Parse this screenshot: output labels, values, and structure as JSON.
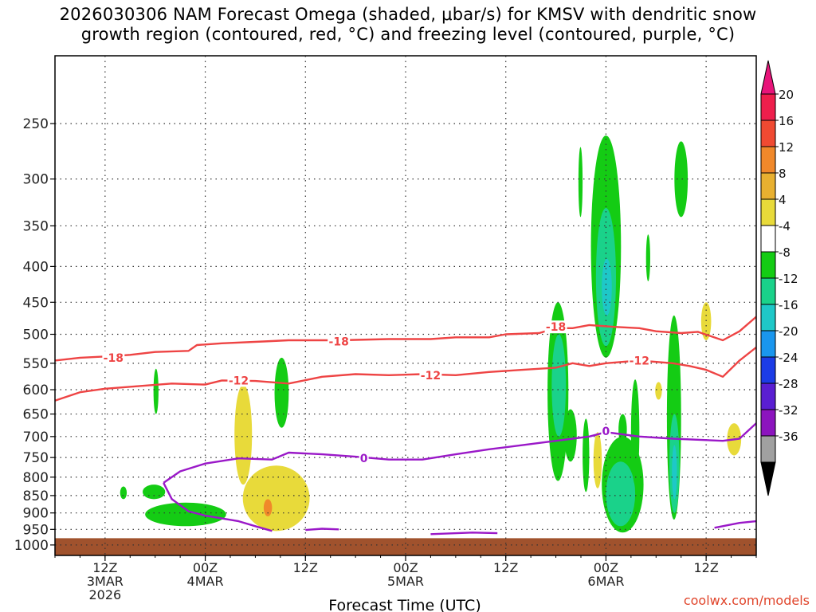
{
  "title": {
    "line1": "2026030306 NAM Forecast Omega (shaded, μbar/s) for KMSV with dendritic snow",
    "line2": "growth region (contoured, red, °C) and freezing level (contoured, purple, °C)"
  },
  "credit": "coolwx.com/models",
  "chart_data": {
    "type": "heatmap",
    "title": "2026030306 NAM Forecast Omega (shaded, μbar/s) for KMSV with dendritic snow growth region (contoured, red, °C) and freezing level (contoured, purple, °C)",
    "xlabel": "Forecast Time (UTC)",
    "ylabel": "",
    "x_range_hours": [
      0,
      84
    ],
    "y_log_scale": true,
    "ylim": [
      1035,
      200
    ],
    "grid": true,
    "y_ticks": [
      250,
      300,
      350,
      400,
      450,
      500,
      550,
      600,
      650,
      700,
      750,
      800,
      850,
      900,
      950,
      1000
    ],
    "x_ticks": [
      {
        "hour": 6,
        "lines": [
          "12Z",
          "3MAR",
          "2026"
        ]
      },
      {
        "hour": 18,
        "lines": [
          "00Z",
          "4MAR"
        ]
      },
      {
        "hour": 30,
        "lines": [
          "12Z"
        ]
      },
      {
        "hour": 42,
        "lines": [
          "00Z",
          "5MAR"
        ]
      },
      {
        "hour": 54,
        "lines": [
          "12Z"
        ]
      },
      {
        "hour": 66,
        "lines": [
          "00Z",
          "6MAR"
        ]
      },
      {
        "hour": 78,
        "lines": [
          "12Z"
        ]
      }
    ],
    "colorbar": [
      {
        "label": "20",
        "color": "#ee1e4c"
      },
      {
        "label": "16",
        "color": "#f04a32"
      },
      {
        "label": "12",
        "color": "#f0882a"
      },
      {
        "label": "8",
        "color": "#e8b030"
      },
      {
        "label": "4",
        "color": "#e8da3a"
      },
      {
        "label": "-4",
        "color": "#ffffff"
      },
      {
        "label": "-8",
        "color": "#14cc14"
      },
      {
        "label": "-12",
        "color": "#1ad28a"
      },
      {
        "label": "-16",
        "color": "#1ec8c8"
      },
      {
        "label": "-20",
        "color": "#1a96ee"
      },
      {
        "label": "-24",
        "color": "#1c3ce6"
      },
      {
        "label": "-28",
        "color": "#5a1ed2"
      },
      {
        "label": "-32",
        "color": "#8c14be"
      },
      {
        "label": "-36",
        "color": "#a0a0a0"
      }
    ],
    "colorbar_top_color": "#e8147a",
    "colorbar_bottom_color": "#000000",
    "contours": [
      {
        "level": -18,
        "color": "#ee4444",
        "points": [
          [
            0,
            545
          ],
          [
            3,
            540
          ],
          [
            6,
            538
          ],
          [
            9,
            535
          ],
          [
            12,
            530
          ],
          [
            16,
            528
          ],
          [
            17,
            518
          ],
          [
            20,
            515
          ],
          [
            25,
            512
          ],
          [
            28,
            510
          ],
          [
            34,
            510
          ],
          [
            40,
            508
          ],
          [
            45,
            508
          ],
          [
            48,
            505
          ],
          [
            52,
            505
          ],
          [
            54,
            500
          ],
          [
            58,
            498
          ],
          [
            60,
            490
          ],
          [
            62,
            490
          ],
          [
            64,
            485
          ],
          [
            67,
            488
          ],
          [
            70,
            490
          ],
          [
            72,
            495
          ],
          [
            75,
            498
          ],
          [
            77,
            496
          ],
          [
            80,
            510
          ],
          [
            82,
            495
          ],
          [
            84,
            472
          ]
        ],
        "labels": [
          [
            7,
            540
          ],
          [
            34,
            512
          ],
          [
            60,
            488
          ]
        ]
      },
      {
        "level": -12,
        "color": "#ee4444",
        "points": [
          [
            0,
            622
          ],
          [
            3,
            605
          ],
          [
            6,
            598
          ],
          [
            10,
            593
          ],
          [
            14,
            588
          ],
          [
            18,
            590
          ],
          [
            20,
            582
          ],
          [
            24,
            583
          ],
          [
            28,
            588
          ],
          [
            32,
            575
          ],
          [
            36,
            570
          ],
          [
            40,
            572
          ],
          [
            44,
            570
          ],
          [
            48,
            572
          ],
          [
            52,
            566
          ],
          [
            56,
            562
          ],
          [
            60,
            558
          ],
          [
            62,
            550
          ],
          [
            64,
            555
          ],
          [
            66,
            550
          ],
          [
            70,
            545
          ],
          [
            74,
            550
          ],
          [
            76,
            555
          ],
          [
            78,
            562
          ],
          [
            80,
            575
          ],
          [
            82,
            545
          ],
          [
            84,
            522
          ]
        ],
        "labels": [
          [
            22,
            582
          ],
          [
            45,
            572
          ],
          [
            70,
            545
          ]
        ]
      },
      {
        "level": 0,
        "color": "#9a18c8",
        "points": [
          [
            13,
            815
          ],
          [
            15,
            785
          ],
          [
            18,
            765
          ],
          [
            22,
            752
          ],
          [
            26,
            755
          ],
          [
            28,
            738
          ],
          [
            32,
            742
          ],
          [
            36,
            748
          ],
          [
            40,
            755
          ],
          [
            44,
            755
          ],
          [
            48,
            742
          ],
          [
            52,
            730
          ],
          [
            56,
            720
          ],
          [
            60,
            710
          ],
          [
            62,
            705
          ],
          [
            64,
            700
          ],
          [
            66,
            690
          ],
          [
            70,
            700
          ],
          [
            74,
            705
          ],
          [
            80,
            710
          ],
          [
            82,
            705
          ],
          [
            84,
            670
          ]
        ],
        "labels": [
          [
            37,
            752
          ],
          [
            66,
            688
          ]
        ]
      },
      {
        "level": 0,
        "color": "#9a18c8",
        "points": [
          [
            13,
            815
          ],
          [
            14,
            860
          ],
          [
            16,
            895
          ],
          [
            18,
            908
          ],
          [
            22,
            925
          ],
          [
            24,
            940
          ],
          [
            26,
            955
          ]
        ],
        "labels": []
      },
      {
        "level": 0,
        "color": "#9a18c8",
        "points": [
          [
            30,
            952
          ],
          [
            32,
            948
          ],
          [
            34,
            950
          ]
        ],
        "labels": []
      },
      {
        "level": 0,
        "color": "#9a18c8",
        "points": [
          [
            45,
            965
          ],
          [
            50,
            960
          ],
          [
            53,
            962
          ]
        ],
        "labels": []
      },
      {
        "level": 0,
        "color": "#9a18c8",
        "points": [
          [
            79,
            945
          ],
          [
            82,
            930
          ],
          [
            84,
            925
          ]
        ],
        "labels": []
      }
    ],
    "shaded_regions": [
      {
        "color": "#14cc14",
        "x": [
          11.8,
          12.4
        ],
        "p": [
          560,
          650
        ]
      },
      {
        "color": "#14cc14",
        "x": [
          7.8,
          8.6
        ],
        "p": [
          825,
          860
        ]
      },
      {
        "color": "#14cc14",
        "x": [
          10.5,
          13.2
        ],
        "p": [
          820,
          860
        ]
      },
      {
        "color": "#14cc14",
        "x": [
          10.8,
          20.5
        ],
        "p": [
          870,
          940
        ]
      },
      {
        "color": "#14cc14",
        "x": [
          26.3,
          28.0
        ],
        "p": [
          540,
          680
        ]
      },
      {
        "color": "#e8da3a",
        "x": [
          21.5,
          23.6
        ],
        "p": [
          590,
          820
        ]
      },
      {
        "color": "#e8da3a",
        "x": [
          22.5,
          30.5
        ],
        "p": [
          770,
          955
        ]
      },
      {
        "color": "#f0882a",
        "x": [
          25.0,
          26.0
        ],
        "p": [
          860,
          910
        ]
      },
      {
        "color": "#14cc14",
        "x": [
          59.0,
          61.5
        ],
        "p": [
          450,
          810
        ]
      },
      {
        "color": "#1ad28a",
        "x": [
          59.5,
          61.2
        ],
        "p": [
          500,
          700
        ]
      },
      {
        "color": "#14cc14",
        "x": [
          61.0,
          62.5
        ],
        "p": [
          640,
          760
        ]
      },
      {
        "color": "#14cc14",
        "x": [
          62.7,
          63.2
        ],
        "p": [
          270,
          340
        ]
      },
      {
        "color": "#14cc14",
        "x": [
          64.2,
          67.8
        ],
        "p": [
          260,
          540
        ]
      },
      {
        "color": "#1ad28a",
        "x": [
          64.8,
          67.2
        ],
        "p": [
          330,
          520
        ]
      },
      {
        "color": "#1ec8c8",
        "x": [
          65.5,
          66.7
        ],
        "p": [
          390,
          470
        ]
      },
      {
        "color": "#14cc14",
        "x": [
          63.2,
          64.0
        ],
        "p": [
          660,
          840
        ]
      },
      {
        "color": "#e8da3a",
        "x": [
          64.5,
          65.5
        ],
        "p": [
          690,
          830
        ]
      },
      {
        "color": "#14cc14",
        "x": [
          65.5,
          70.5
        ],
        "p": [
          700,
          960
        ]
      },
      {
        "color": "#1ad28a",
        "x": [
          66.0,
          69.5
        ],
        "p": [
          760,
          940
        ]
      },
      {
        "color": "#14cc14",
        "x": [
          67.5,
          68.5
        ],
        "p": [
          650,
          720
        ]
      },
      {
        "color": "#14cc14",
        "x": [
          69.0,
          70.0
        ],
        "p": [
          580,
          820
        ]
      },
      {
        "color": "#14cc14",
        "x": [
          70.8,
          71.3
        ],
        "p": [
          360,
          420
        ]
      },
      {
        "color": "#e8da3a",
        "x": [
          71.9,
          72.7
        ],
        "p": [
          585,
          620
        ]
      },
      {
        "color": "#14cc14",
        "x": [
          74.2,
          75.8
        ],
        "p": [
          265,
          340
        ]
      },
      {
        "color": "#14cc14",
        "x": [
          73.3,
          75.0
        ],
        "p": [
          470,
          920
        ]
      },
      {
        "color": "#1ad28a",
        "x": [
          73.6,
          74.8
        ],
        "p": [
          650,
          900
        ]
      },
      {
        "color": "#1ec8c8",
        "x": [
          73.9,
          74.5
        ],
        "p": [
          720,
          860
        ]
      },
      {
        "color": "#e8da3a",
        "x": [
          77.4,
          78.6
        ],
        "p": [
          450,
          510
        ]
      },
      {
        "color": "#e8da3a",
        "x": [
          80.5,
          82.2
        ],
        "p": [
          670,
          745
        ]
      }
    ],
    "terrain": {
      "color": "#a0522d",
      "top": 978
    }
  }
}
